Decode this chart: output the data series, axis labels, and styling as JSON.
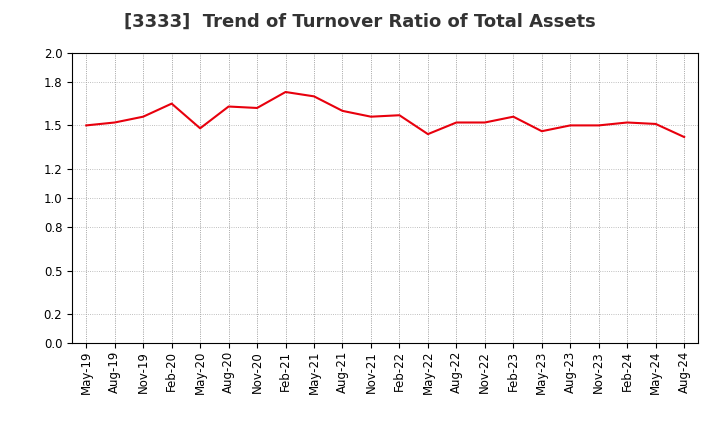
{
  "title": "[3333]  Trend of Turnover Ratio of Total Assets",
  "x_labels": [
    "May-19",
    "Aug-19",
    "Nov-19",
    "Feb-20",
    "May-20",
    "Aug-20",
    "Nov-20",
    "Feb-21",
    "May-21",
    "Aug-21",
    "Nov-21",
    "Feb-22",
    "May-22",
    "Aug-22",
    "Nov-22",
    "Feb-23",
    "May-23",
    "Aug-23",
    "Nov-23",
    "Feb-24",
    "May-24",
    "Aug-24"
  ],
  "values": [
    1.5,
    1.52,
    1.56,
    1.65,
    1.48,
    1.63,
    1.62,
    1.73,
    1.7,
    1.6,
    1.56,
    1.57,
    1.44,
    1.52,
    1.52,
    1.56,
    1.46,
    1.5,
    1.5,
    1.52,
    1.51,
    1.42
  ],
  "line_color": "#e8000d",
  "background_color": "#ffffff",
  "plot_bg_color": "#ffffff",
  "grid_color": "#aaaaaa",
  "ylim": [
    0.0,
    2.0
  ],
  "yticks": [
    0.0,
    0.2,
    0.5,
    0.8,
    1.0,
    1.2,
    1.5,
    1.8,
    2.0
  ],
  "title_fontsize": 13,
  "tick_fontsize": 8.5,
  "line_width": 1.5
}
